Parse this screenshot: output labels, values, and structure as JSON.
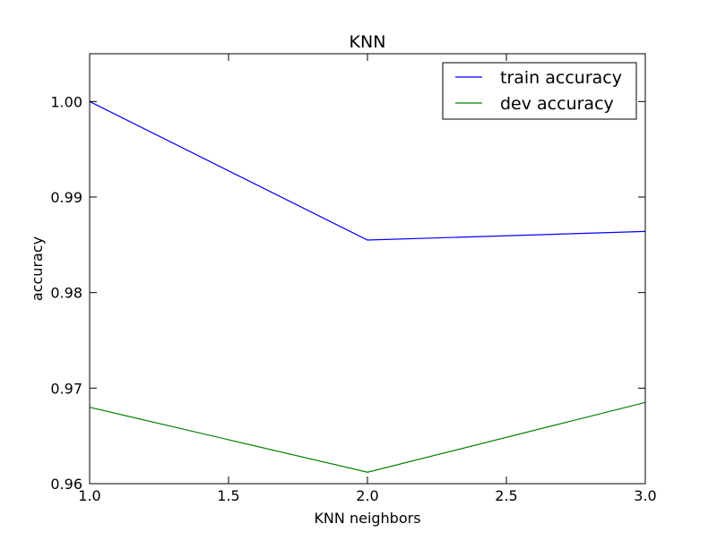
{
  "chart_data": {
    "type": "line",
    "title": "KNN",
    "xlabel": "KNN neighbors",
    "ylabel": "accuracy",
    "xlim": [
      1.0,
      3.0
    ],
    "ylim": [
      0.96,
      1.005
    ],
    "grid": false,
    "legend_position": "top-right",
    "x_ticks": [
      1.0,
      1.5,
      2.0,
      2.5,
      3.0
    ],
    "x_tick_labels": [
      "1.0",
      "1.5",
      "2.0",
      "2.5",
      "3.0"
    ],
    "y_ticks": [
      0.96,
      0.97,
      0.98,
      0.99,
      1.0
    ],
    "y_tick_labels": [
      "0.96",
      "0.97",
      "0.98",
      "0.99",
      "1.00"
    ],
    "series": [
      {
        "name": "train accuracy",
        "color": "#0000ff",
        "x": [
          1.0,
          2.0,
          3.0
        ],
        "y": [
          1.0,
          0.9855,
          0.9864
        ]
      },
      {
        "name": "dev accuracy",
        "color": "#008000",
        "x": [
          1.0,
          2.0,
          3.0
        ],
        "y": [
          0.968,
          0.9612,
          0.9685
        ]
      }
    ]
  }
}
